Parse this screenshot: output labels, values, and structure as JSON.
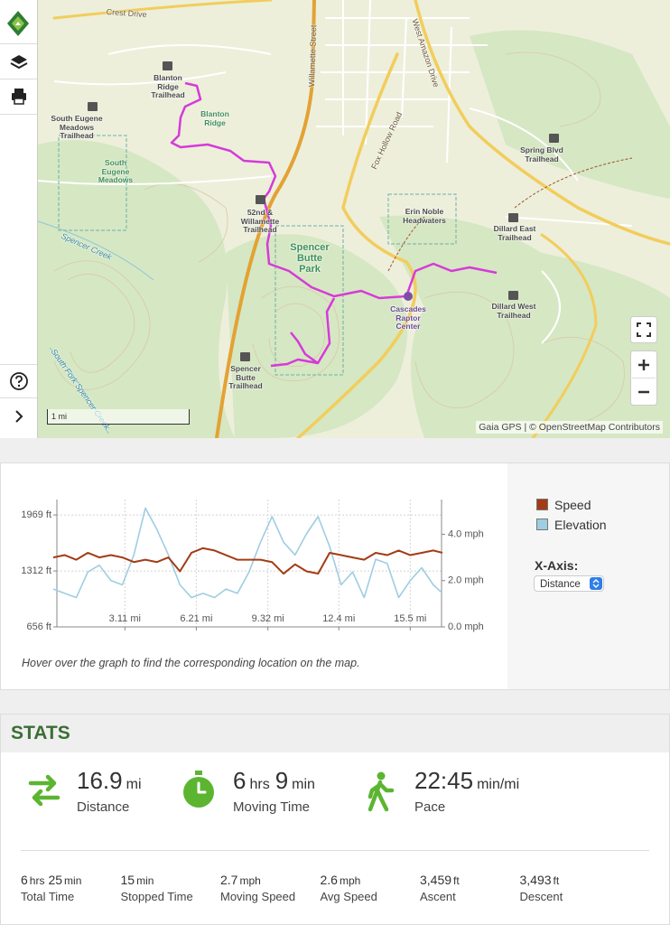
{
  "map": {
    "labels": [
      "Crest Drive",
      "Willamette Street",
      "West Amazon Drive",
      "Fox Hollow Road",
      "Blanton Ridge Trailhead",
      "South Eugene Meadows Trailhead",
      "South Eugene Meadows",
      "Blanton Ridge",
      "52nd & Willamette Trailhead",
      "Spencer Butte Park",
      "Spencer Creek",
      "Erin Noble Headwaters",
      "Spring Blvd Trailhead",
      "Dillard East Trailhead",
      "Dillard West Trailhead",
      "Cascades Raptor Center",
      "Spencer Butte Trailhead",
      "South Fork Spencer Creek"
    ],
    "scale": "1 mi",
    "attribution": "Gaia GPS | © OpenStreetMap Contributors"
  },
  "chart_data": {
    "type": "line",
    "x": [
      0,
      0.5,
      1,
      1.5,
      2,
      2.5,
      3,
      3.5,
      4,
      4.5,
      5,
      5.5,
      6,
      6.5,
      7,
      7.5,
      8,
      8.5,
      9,
      9.5,
      10,
      10.5,
      11,
      11.5,
      12,
      12.5,
      13,
      13.5,
      14,
      14.5,
      15,
      15.5,
      16,
      16.5,
      16.9
    ],
    "series": [
      {
        "name": "Speed",
        "color": "#a33c15",
        "axis": "y2",
        "values": [
          3.0,
          3.1,
          2.9,
          3.2,
          3.0,
          3.1,
          3.0,
          2.8,
          2.9,
          2.8,
          3.0,
          2.4,
          3.2,
          3.4,
          3.3,
          3.1,
          2.9,
          2.9,
          2.9,
          2.8,
          2.3,
          2.7,
          2.4,
          2.3,
          3.2,
          3.1,
          3.0,
          2.9,
          3.2,
          3.1,
          3.3,
          3.1,
          3.2,
          3.3,
          3.2
        ]
      },
      {
        "name": "Elevation",
        "color": "#9fcde2",
        "values": [
          1100,
          1050,
          1000,
          1300,
          1380,
          1200,
          1150,
          1500,
          2050,
          1800,
          1500,
          1150,
          1000,
          1050,
          1000,
          1100,
          1050,
          1300,
          1650,
          1950,
          1650,
          1500,
          1750,
          1950,
          1600,
          1150,
          1300,
          1000,
          1450,
          1400,
          1000,
          1200,
          1350,
          1150,
          1050
        ]
      }
    ],
    "xlim": [
      0,
      16.9
    ],
    "xticks": [
      {
        "value": 3.11,
        "label": "3.11 mi"
      },
      {
        "value": 6.21,
        "label": "6.21 mi"
      },
      {
        "value": 9.32,
        "label": "9.32 mi"
      },
      {
        "value": 12.4,
        "label": "12.4 mi"
      },
      {
        "value": 15.5,
        "label": "15.5 mi"
      }
    ],
    "ylim": [
      656,
      2150
    ],
    "yticks": [
      {
        "value": 656,
        "label": "656 ft"
      },
      {
        "value": 1312,
        "label": "1312 ft"
      },
      {
        "value": 1969,
        "label": "1969 ft"
      }
    ],
    "y2lim": [
      0,
      5.5
    ],
    "y2ticks": [
      {
        "value": 0,
        "label": "0.0 mph"
      },
      {
        "value": 2,
        "label": "2.0 mph"
      },
      {
        "value": 4,
        "label": "4.0 mph"
      }
    ],
    "grid": true,
    "x_axis_label": "X-Axis:",
    "x_axis_option": "Distance",
    "note": "Hover over the graph to find the corresponding location on the map."
  },
  "stats": {
    "title": "STATS",
    "primary": [
      {
        "parts": [
          "16.9",
          "mi"
        ],
        "label": "Distance"
      },
      {
        "parts": [
          "6",
          "hrs",
          "9",
          "min"
        ],
        "label": "Moving Time"
      },
      {
        "parts": [
          "22:45",
          "min/mi"
        ],
        "label": "Pace"
      }
    ],
    "secondary": [
      {
        "parts": [
          "6",
          "hrs",
          "25",
          "min"
        ],
        "label": "Total Time"
      },
      {
        "parts": [
          "15",
          "min"
        ],
        "label": "Stopped Time"
      },
      {
        "parts": [
          "2.7",
          "mph"
        ],
        "label": "Moving Speed"
      },
      {
        "parts": [
          "2.6",
          "mph"
        ],
        "label": "Avg Speed"
      },
      {
        "parts": [
          "3,459",
          "ft"
        ],
        "label": "Ascent"
      },
      {
        "parts": [
          "3,493",
          "ft"
        ],
        "label": "Descent"
      }
    ]
  }
}
